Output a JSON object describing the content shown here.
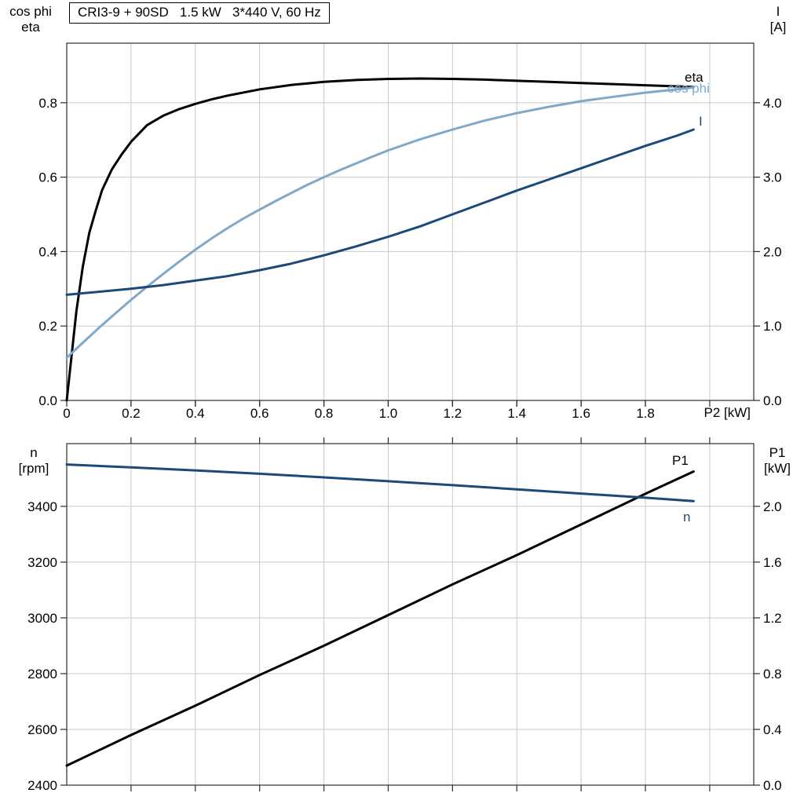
{
  "title_box": "CRI3-9 + 90SD   1.5 kW   3*440 V, 60 Hz",
  "colors": {
    "black": "#000000",
    "light_blue": "#7fa8c9",
    "dark_blue": "#1b4a7a",
    "grid": "#c9c9c9",
    "frame": "#2b2b2b"
  },
  "top_chart": {
    "left_header_line1": "cos phi",
    "left_header_line2": "eta",
    "right_header_line1": "I",
    "right_header_line2": "[A]",
    "x_axis_label": "P2 [kW]"
  },
  "bottom_chart": {
    "left_header_line1": "n",
    "left_header_line2": "[rpm]",
    "right_header_line1": "P1",
    "right_header_line2": "[kW]"
  },
  "chart_data": [
    {
      "type": "line",
      "title": "CRI3-9 + 90SD   1.5 kW   3*440 V, 60 Hz",
      "xlabel": "P2 [kW]",
      "x_range": [
        0,
        2.137
      ],
      "x_grid": [
        0.2,
        0.4,
        0.6,
        0.8,
        1.0,
        1.2,
        1.4,
        1.6,
        1.8,
        2.0
      ],
      "x_ticks": [
        [
          0,
          "0"
        ],
        [
          0.2,
          "0.2"
        ],
        [
          0.4,
          "0.4"
        ],
        [
          0.6,
          "0.6"
        ],
        [
          0.8,
          "0.8"
        ],
        [
          1.0,
          "1.0"
        ],
        [
          1.2,
          "1.2"
        ],
        [
          1.4,
          "1.4"
        ],
        [
          1.6,
          "1.6"
        ],
        [
          1.8,
          "1.8"
        ]
      ],
      "left_axis": {
        "label": "cos phi / eta",
        "range": [
          0,
          0.96
        ],
        "grid": [
          0.2,
          0.4,
          0.6,
          0.8
        ],
        "ticks": [
          [
            0,
            "0.0"
          ],
          [
            0.2,
            "0.2"
          ],
          [
            0.4,
            "0.4"
          ],
          [
            0.6,
            "0.6"
          ],
          [
            0.8,
            "0.8"
          ]
        ]
      },
      "right_axis": {
        "label": "I [A]",
        "range": [
          0,
          4.8
        ],
        "grid": [],
        "ticks": [
          [
            0,
            "0.0"
          ],
          [
            1,
            "1.0"
          ],
          [
            2,
            "2.0"
          ],
          [
            3,
            "3.0"
          ],
          [
            4,
            "4.0"
          ]
        ]
      },
      "series": [
        {
          "name": "eta",
          "axis": "left",
          "color": "black",
          "points": [
            [
              0,
              0
            ],
            [
              0.01,
              0.08
            ],
            [
              0.02,
              0.16
            ],
            [
              0.03,
              0.24
            ],
            [
              0.04,
              0.3
            ],
            [
              0.05,
              0.36
            ],
            [
              0.07,
              0.45
            ],
            [
              0.09,
              0.51
            ],
            [
              0.11,
              0.565
            ],
            [
              0.14,
              0.62
            ],
            [
              0.17,
              0.66
            ],
            [
              0.2,
              0.695
            ],
            [
              0.25,
              0.74
            ],
            [
              0.3,
              0.765
            ],
            [
              0.35,
              0.783
            ],
            [
              0.4,
              0.797
            ],
            [
              0.45,
              0.809
            ],
            [
              0.5,
              0.819
            ],
            [
              0.6,
              0.836
            ],
            [
              0.7,
              0.848
            ],
            [
              0.8,
              0.856
            ],
            [
              0.9,
              0.861
            ],
            [
              1.0,
              0.864
            ],
            [
              1.1,
              0.865
            ],
            [
              1.2,
              0.864
            ],
            [
              1.3,
              0.862
            ],
            [
              1.4,
              0.859
            ],
            [
              1.5,
              0.856
            ],
            [
              1.6,
              0.853
            ],
            [
              1.7,
              0.85
            ],
            [
              1.8,
              0.847
            ],
            [
              1.9,
              0.844
            ],
            [
              1.95,
              0.842
            ]
          ]
        },
        {
          "name": "cos phi",
          "axis": "left",
          "color": "light_blue",
          "points": [
            [
              0,
              0.115
            ],
            [
              0.05,
              0.155
            ],
            [
              0.1,
              0.195
            ],
            [
              0.15,
              0.233
            ],
            [
              0.2,
              0.27
            ],
            [
              0.25,
              0.306
            ],
            [
              0.3,
              0.34
            ],
            [
              0.35,
              0.373
            ],
            [
              0.4,
              0.405
            ],
            [
              0.45,
              0.435
            ],
            [
              0.5,
              0.463
            ],
            [
              0.55,
              0.489
            ],
            [
              0.6,
              0.513
            ],
            [
              0.65,
              0.536
            ],
            [
              0.7,
              0.558
            ],
            [
              0.75,
              0.58
            ],
            [
              0.8,
              0.6
            ],
            [
              0.85,
              0.619
            ],
            [
              0.9,
              0.637
            ],
            [
              0.95,
              0.655
            ],
            [
              1.0,
              0.672
            ],
            [
              1.1,
              0.702
            ],
            [
              1.2,
              0.728
            ],
            [
              1.3,
              0.752
            ],
            [
              1.4,
              0.772
            ],
            [
              1.5,
              0.789
            ],
            [
              1.6,
              0.804
            ],
            [
              1.7,
              0.816
            ],
            [
              1.8,
              0.827
            ],
            [
              1.9,
              0.836
            ],
            [
              1.95,
              0.841
            ]
          ]
        },
        {
          "name": "I",
          "axis": "right",
          "color": "dark_blue",
          "points": [
            [
              0,
              1.42
            ],
            [
              0.1,
              1.46
            ],
            [
              0.2,
              1.5
            ],
            [
              0.3,
              1.55
            ],
            [
              0.4,
              1.61
            ],
            [
              0.5,
              1.67
            ],
            [
              0.6,
              1.75
            ],
            [
              0.7,
              1.84
            ],
            [
              0.8,
              1.95
            ],
            [
              0.9,
              2.07
            ],
            [
              1.0,
              2.2
            ],
            [
              1.1,
              2.34
            ],
            [
              1.2,
              2.5
            ],
            [
              1.3,
              2.66
            ],
            [
              1.4,
              2.82
            ],
            [
              1.5,
              2.97
            ],
            [
              1.6,
              3.12
            ],
            [
              1.7,
              3.27
            ],
            [
              1.8,
              3.42
            ],
            [
              1.9,
              3.56
            ],
            [
              1.95,
              3.64
            ]
          ]
        }
      ]
    },
    {
      "type": "line",
      "title": "",
      "xlabel": "",
      "x_range": [
        0,
        2.137
      ],
      "x_grid": [
        0.2,
        0.4,
        0.6,
        0.8,
        1.0,
        1.2,
        1.4,
        1.6,
        1.8,
        2.0
      ],
      "x_ticks": [],
      "left_axis": {
        "label": "n [rpm]",
        "range": [
          2400,
          3625
        ],
        "grid": [
          2600,
          2800,
          3000,
          3200,
          3400
        ],
        "ticks": [
          [
            2400,
            "2400"
          ],
          [
            2600,
            "2600"
          ],
          [
            2800,
            "2800"
          ],
          [
            3000,
            "3000"
          ],
          [
            3200,
            "3200"
          ],
          [
            3400,
            "3400"
          ]
        ]
      },
      "right_axis": {
        "label": "P1 [kW]",
        "range": [
          0,
          2.45
        ],
        "grid": [],
        "ticks": [
          [
            0,
            "0.0"
          ],
          [
            0.4,
            "0.4"
          ],
          [
            0.8,
            "0.8"
          ],
          [
            1.2,
            "1.2"
          ],
          [
            1.6,
            "1.6"
          ],
          [
            2.0,
            "2.0"
          ]
        ]
      },
      "series": [
        {
          "name": "P1",
          "axis": "right",
          "color": "black",
          "points": [
            [
              0,
              0.14
            ],
            [
              0.2,
              0.36
            ],
            [
              0.4,
              0.57
            ],
            [
              0.6,
              0.79
            ],
            [
              0.8,
              1.0
            ],
            [
              1.0,
              1.22
            ],
            [
              1.2,
              1.44
            ],
            [
              1.4,
              1.65
            ],
            [
              1.6,
              1.87
            ],
            [
              1.8,
              2.09
            ],
            [
              1.95,
              2.25
            ]
          ]
        },
        {
          "name": "n",
          "axis": "left",
          "color": "dark_blue",
          "points": [
            [
              0,
              3550
            ],
            [
              0.2,
              3540
            ],
            [
              0.4,
              3529
            ],
            [
              0.6,
              3517
            ],
            [
              0.8,
              3504
            ],
            [
              1.0,
              3490
            ],
            [
              1.2,
              3476
            ],
            [
              1.4,
              3461
            ],
            [
              1.6,
              3446
            ],
            [
              1.8,
              3431
            ],
            [
              1.95,
              3419
            ]
          ]
        }
      ]
    }
  ]
}
